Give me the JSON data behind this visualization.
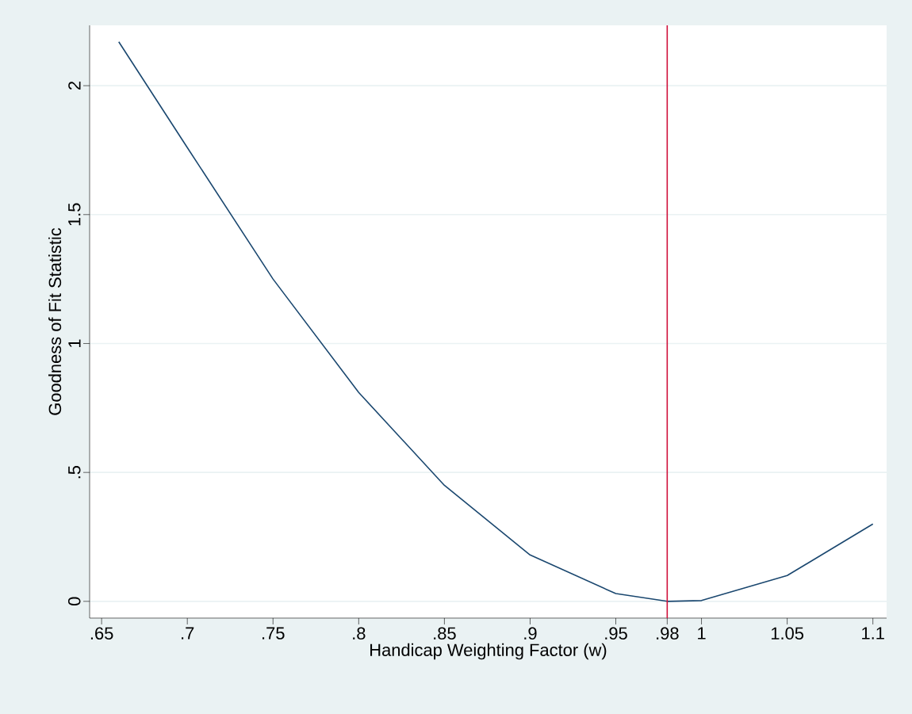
{
  "chart_data": {
    "type": "line",
    "xlabel": "Handicap Weighting Factor (w)",
    "ylabel": "Goodness of Fit Statistic",
    "x": [
      0.66,
      0.7,
      0.75,
      0.8,
      0.85,
      0.9,
      0.95,
      0.98,
      1.0,
      1.05,
      1.1
    ],
    "series": [
      {
        "color": "#1a476f",
        "values": [
          2.17,
          1.76,
          1.25,
          0.81,
          0.45,
          0.18,
          0.03,
          0.0,
          0.003,
          0.1,
          0.3
        ]
      }
    ],
    "xlim": [
      0.643,
      1.108
    ],
    "ylim": [
      -0.065,
      2.234
    ],
    "xticks": [
      {
        "value": 0.65,
        "label": ".65"
      },
      {
        "value": 0.7,
        "label": ".7"
      },
      {
        "value": 0.75,
        "label": ".75"
      },
      {
        "value": 0.8,
        "label": ".8"
      },
      {
        "value": 0.85,
        "label": ".85"
      },
      {
        "value": 0.9,
        "label": ".9"
      },
      {
        "value": 0.95,
        "label": ".95"
      },
      {
        "value": 0.98,
        "label": ".98"
      },
      1,
      1.05,
      1.1
    ],
    "yticks": [
      0,
      {
        "value": 0.5,
        "label": ".5"
      },
      1,
      1.5,
      2
    ],
    "ref_lines": [
      {
        "axis": "x",
        "value": 0.98,
        "color": "#d0103a"
      }
    ],
    "grid": "y",
    "marker": "none",
    "line_style": "solid"
  }
}
